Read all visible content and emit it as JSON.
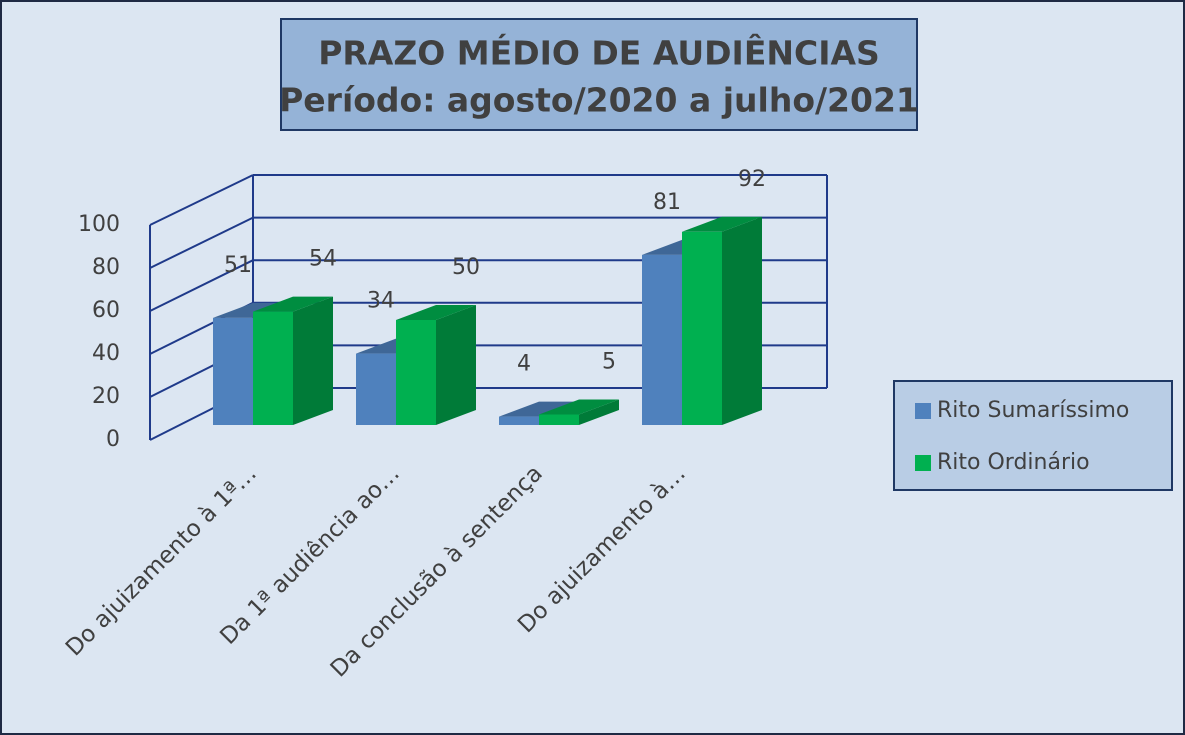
{
  "chart_data": {
    "type": "bar3d",
    "title": "PRAZO MÉDIO DE AUDIÊNCIAS",
    "subtitle": "Período: agosto/2020 a julho/2021",
    "categories": [
      "Do ajuizamento à 1ª…",
      "Da 1ª audiência ao…",
      "Da conclusão à sentença",
      "Do ajuizamento à…"
    ],
    "series": [
      {
        "name": "Rito Sumaríssimo",
        "color": "#4f81bd",
        "values": [
          51,
          34,
          4,
          81
        ]
      },
      {
        "name": "Rito Ordinário",
        "color": "#00b050",
        "values": [
          54,
          50,
          5,
          92
        ]
      }
    ],
    "ylim": [
      0,
      100
    ],
    "yticks": [
      0,
      20,
      40,
      60,
      80,
      100
    ],
    "grid": true,
    "legend": "right"
  }
}
